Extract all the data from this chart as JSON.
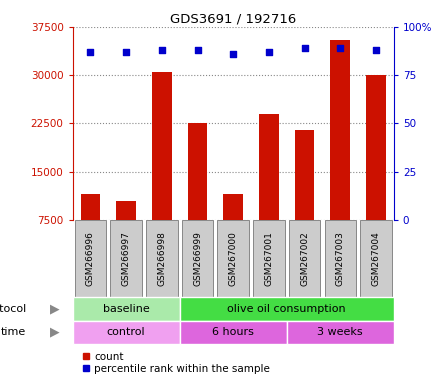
{
  "title": "GDS3691 / 192716",
  "samples": [
    "GSM266996",
    "GSM266997",
    "GSM266998",
    "GSM266999",
    "GSM267000",
    "GSM267001",
    "GSM267002",
    "GSM267003",
    "GSM267004"
  ],
  "counts": [
    11500,
    10500,
    30500,
    22500,
    11500,
    24000,
    21500,
    35500,
    30000
  ],
  "percentile_ranks": [
    87,
    87,
    88,
    88,
    86,
    87,
    89,
    89,
    88
  ],
  "ylim_left": [
    7500,
    37500
  ],
  "ylim_right": [
    0,
    100
  ],
  "yticks_left": [
    7500,
    15000,
    22500,
    30000,
    37500
  ],
  "yticks_right": [
    0,
    25,
    50,
    75,
    100
  ],
  "bar_color": "#cc1100",
  "scatter_color": "#0000cc",
  "protocol_groups": [
    {
      "label": "baseline",
      "start": 0,
      "end": 3,
      "color": "#aaeaaa"
    },
    {
      "label": "olive oil consumption",
      "start": 3,
      "end": 9,
      "color": "#44dd44"
    }
  ],
  "time_groups": [
    {
      "label": "control",
      "start": 0,
      "end": 3,
      "color": "#f0a0f0"
    },
    {
      "label": "6 hours",
      "start": 3,
      "end": 6,
      "color": "#dd66dd"
    },
    {
      "label": "3 weeks",
      "start": 6,
      "end": 9,
      "color": "#dd66dd"
    }
  ],
  "legend_count_label": "count",
  "legend_pct_label": "percentile rank within the sample",
  "left_axis_color": "#cc1100",
  "right_axis_color": "#0000cc",
  "grid_color": "#888888",
  "label_box_color": "#cccccc",
  "label_box_edge": "#888888"
}
